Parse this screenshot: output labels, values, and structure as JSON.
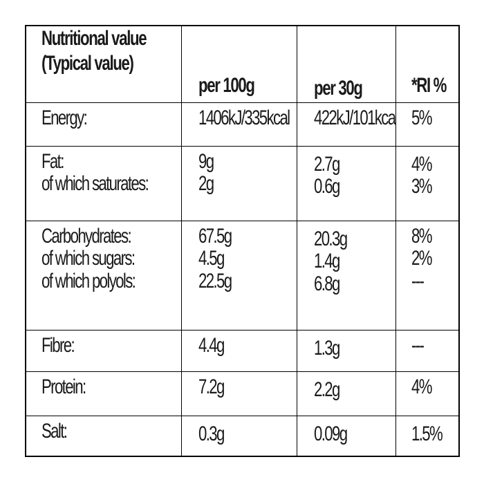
{
  "header": {
    "title_line1": "Nutritional value",
    "title_line2": "(Typical value)",
    "per100": "per 100g",
    "per30": "per 30g",
    "ri": "*RI %"
  },
  "rows": {
    "energy": {
      "label": "Energy:",
      "per100": "1406kJ/335kcal",
      "per30": "422kJ/101kca",
      "ri": "5%"
    },
    "fat": {
      "label1": "Fat:",
      "label2": "of which saturates:",
      "per100_1": "9g",
      "per100_2": "2g",
      "per30_1": "2.7g",
      "per30_2": "0.6g",
      "ri_1": "4%",
      "ri_2": "3%"
    },
    "carbs": {
      "label1": "Carbohydrates:",
      "label2": "of which sugars:",
      "label3": "of which polyols:",
      "per100_1": "67.5g",
      "per100_2": "4.5g",
      "per100_3": "22.5g",
      "per30_1": "20.3g",
      "per30_2": "1.4g",
      "per30_3": "6.8g",
      "ri_1": "8%",
      "ri_2": "2%",
      "ri_3": "---"
    },
    "fibre": {
      "label": "Fibre:",
      "per100": "4.4g",
      "per30": "1.3g",
      "ri": "---"
    },
    "protein": {
      "label": "Protein:",
      "per100": "7.2g",
      "per30": "2.2g",
      "ri": "4%"
    },
    "salt": {
      "label": "Salt:",
      "per100": "0.3g",
      "per30": "0.09g",
      "ri": "1.5%"
    }
  }
}
